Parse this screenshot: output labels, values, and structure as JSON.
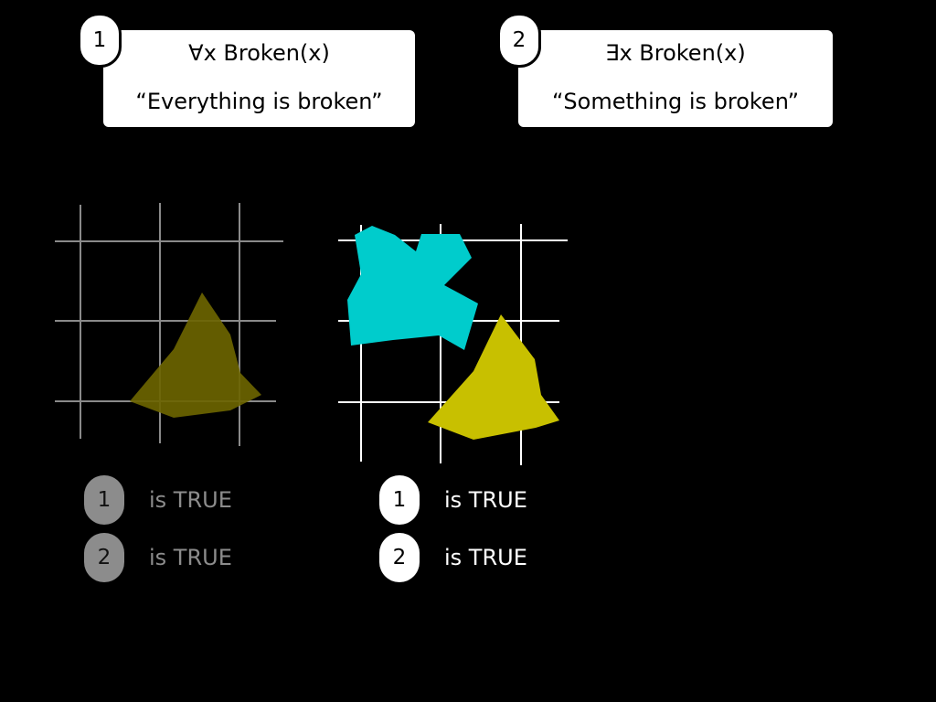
{
  "statements": [
    {
      "number": "1",
      "formula": "∀x Broken(x)",
      "gloss": "“Everything is broken”"
    },
    {
      "number": "2",
      "formula": "∃x Broken(x)",
      "gloss": "“Something is broken”"
    }
  ],
  "scenarios": [
    {
      "grid_color": "#8a8a8a",
      "shape_colors": [
        "#6b6400"
      ],
      "results": [
        {
          "badge": "1",
          "text": "is TRUE"
        },
        {
          "badge": "2",
          "text": "is TRUE"
        }
      ]
    },
    {
      "grid_color": "#ffffff",
      "shape_colors": [
        "#00cccc",
        "#c8c000"
      ],
      "results": [
        {
          "badge": "1",
          "text": "is TRUE"
        },
        {
          "badge": "2",
          "text": "is TRUE"
        }
      ]
    }
  ]
}
